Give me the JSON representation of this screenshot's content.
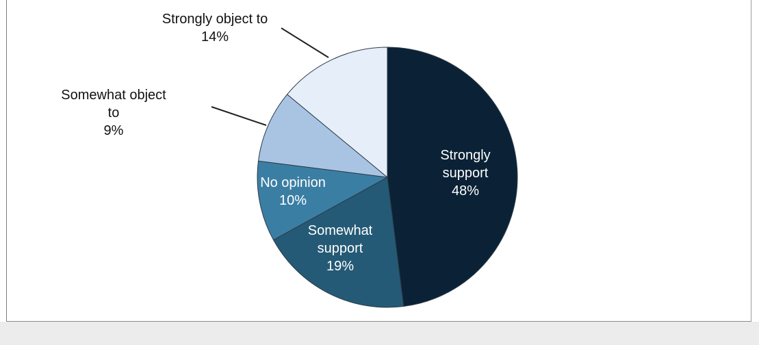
{
  "chart_data": {
    "type": "pie",
    "slices": [
      {
        "label_lines": [
          "Strongly",
          "support"
        ],
        "label": "Strongly support",
        "value": 48,
        "display": "48%",
        "color": "#0b2236",
        "text_color": "#ffffff",
        "label_position": "inside"
      },
      {
        "label_lines": [
          "Somewhat",
          "support"
        ],
        "label": "Somewhat support",
        "value": 19,
        "display": "19%",
        "color": "#245a75",
        "text_color": "#ffffff",
        "label_position": "inside"
      },
      {
        "label_lines": [
          "No opinion"
        ],
        "label": "No opinion",
        "value": 10,
        "display": "10%",
        "color": "#3b7ea3",
        "text_color": "#ffffff",
        "label_position": "inside"
      },
      {
        "label_lines": [
          "Somewhat object",
          "to"
        ],
        "label": "Somewhat object to",
        "value": 9,
        "display": "9%",
        "color": "#a9c4e2",
        "text_color": "#111111",
        "label_position": "outside"
      },
      {
        "label_lines": [
          "Strongly object to"
        ],
        "label": "Strongly object to",
        "value": 14,
        "display": "14%",
        "color": "#e6eef9",
        "text_color": "#111111",
        "label_position": "outside"
      }
    ],
    "start": "12 o'clock",
    "direction": "clockwise",
    "legend": "none"
  }
}
